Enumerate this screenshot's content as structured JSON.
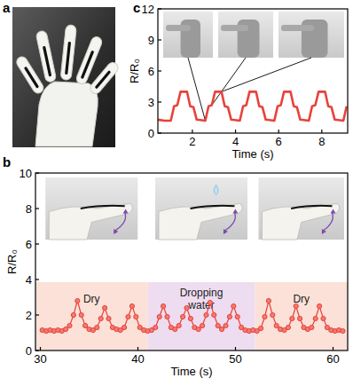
{
  "photo_panel": {
    "panel_label": "a"
  },
  "chart_data": [
    {
      "type": "line",
      "panel_label": "b",
      "xlabel": "Time (s)",
      "ylabel": "R/R₀",
      "x": [
        30.2,
        30.6,
        31.0,
        31.4,
        31.8,
        32.2,
        32.6,
        33.0,
        33.4,
        33.8,
        34.2,
        34.6,
        35.0,
        35.4,
        35.8,
        36.2,
        36.6,
        37.0,
        37.4,
        37.8,
        38.2,
        38.6,
        39.0,
        39.4,
        39.8,
        40.2,
        40.6,
        41.0,
        41.4,
        41.8,
        42.2,
        42.6,
        43.0,
        43.4,
        43.8,
        44.2,
        44.6,
        45.0,
        45.4,
        45.8,
        46.2,
        46.6,
        47.0,
        47.4,
        47.8,
        48.2,
        48.6,
        49.0,
        49.4,
        49.8,
        50.2,
        50.6,
        51.0,
        51.4,
        51.8,
        52.2,
        52.6,
        53.0,
        53.4,
        53.8,
        54.2,
        54.6,
        55.0,
        55.4,
        55.8,
        56.2,
        56.6,
        57.0,
        57.4,
        57.8,
        58.2,
        58.6,
        59.0,
        59.4,
        59.8,
        60.2,
        60.6,
        61.0
      ],
      "values": [
        1.15,
        1.1,
        1.15,
        1.1,
        1.15,
        1.1,
        1.2,
        1.4,
        2.0,
        2.8,
        2.0,
        1.4,
        1.2,
        1.15,
        1.3,
        1.8,
        2.4,
        1.8,
        1.3,
        1.2,
        1.15,
        1.3,
        1.9,
        2.5,
        1.9,
        1.3,
        1.15,
        1.1,
        1.15,
        1.3,
        1.9,
        2.5,
        1.9,
        1.3,
        1.2,
        1.4,
        1.9,
        2.4,
        1.8,
        1.3,
        1.2,
        1.4,
        2.0,
        2.7,
        2.0,
        1.4,
        1.2,
        1.4,
        1.9,
        2.5,
        1.9,
        1.3,
        1.15,
        1.1,
        1.15,
        1.1,
        1.25,
        1.9,
        2.8,
        2.0,
        1.4,
        1.2,
        1.15,
        1.3,
        1.8,
        2.5,
        1.8,
        1.3,
        1.2,
        1.3,
        1.8,
        2.5,
        1.8,
        1.3,
        1.15,
        1.1,
        1.15,
        1.1
      ],
      "color": "#e8423a",
      "marker": "circle",
      "xlim": [
        29.5,
        61.5
      ],
      "ylim": [
        0,
        10
      ],
      "xticks": [
        30,
        40,
        50,
        60
      ],
      "yticks": [
        0,
        2,
        4,
        6,
        8,
        10
      ],
      "regions": [
        {
          "label": "Dry",
          "start": 29.5,
          "end": 41,
          "color": "#fbe1d8"
        },
        {
          "label": "Dropping water",
          "start": 41,
          "end": 52,
          "color": "#eedcf0"
        },
        {
          "label": "Dry",
          "start": 52,
          "end": 61.5,
          "color": "#fbe1d8"
        }
      ]
    },
    {
      "type": "line",
      "panel_label": "c",
      "xlabel": "Time (s)",
      "ylabel": "R/R₀",
      "x": [
        0.4,
        0.7,
        1.0,
        1.15,
        1.3,
        1.45,
        1.75,
        1.9,
        2.05,
        2.2,
        2.6,
        2.75,
        2.9,
        3.05,
        3.35,
        3.5,
        3.65,
        3.8,
        4.2,
        4.35,
        4.5,
        4.65,
        4.95,
        5.1,
        5.25,
        5.4,
        5.8,
        5.95,
        6.1,
        6.25,
        6.55,
        6.7,
        6.85,
        7.0,
        7.4,
        7.55,
        7.7,
        7.85,
        8.15,
        8.3,
        8.45,
        8.6,
        9.0,
        9.15
      ],
      "values": [
        1.3,
        1.2,
        1.2,
        2.6,
        2.7,
        4.0,
        4.0,
        2.6,
        2.5,
        1.3,
        1.2,
        2.6,
        2.7,
        4.0,
        4.0,
        2.6,
        2.5,
        1.3,
        1.2,
        2.6,
        2.7,
        4.0,
        4.0,
        2.6,
        2.5,
        1.3,
        1.2,
        2.6,
        2.7,
        4.0,
        4.0,
        2.6,
        2.5,
        1.3,
        1.2,
        2.6,
        2.7,
        4.0,
        4.0,
        2.6,
        2.5,
        1.3,
        1.2,
        2.6
      ],
      "color": "#e8423a",
      "line_style": "solid",
      "xlim": [
        0.4,
        9.2
      ],
      "ylim": [
        0,
        12
      ],
      "xticks": [
        2,
        4,
        6,
        8
      ],
      "yticks": [
        0,
        3,
        6,
        9,
        12
      ]
    }
  ]
}
